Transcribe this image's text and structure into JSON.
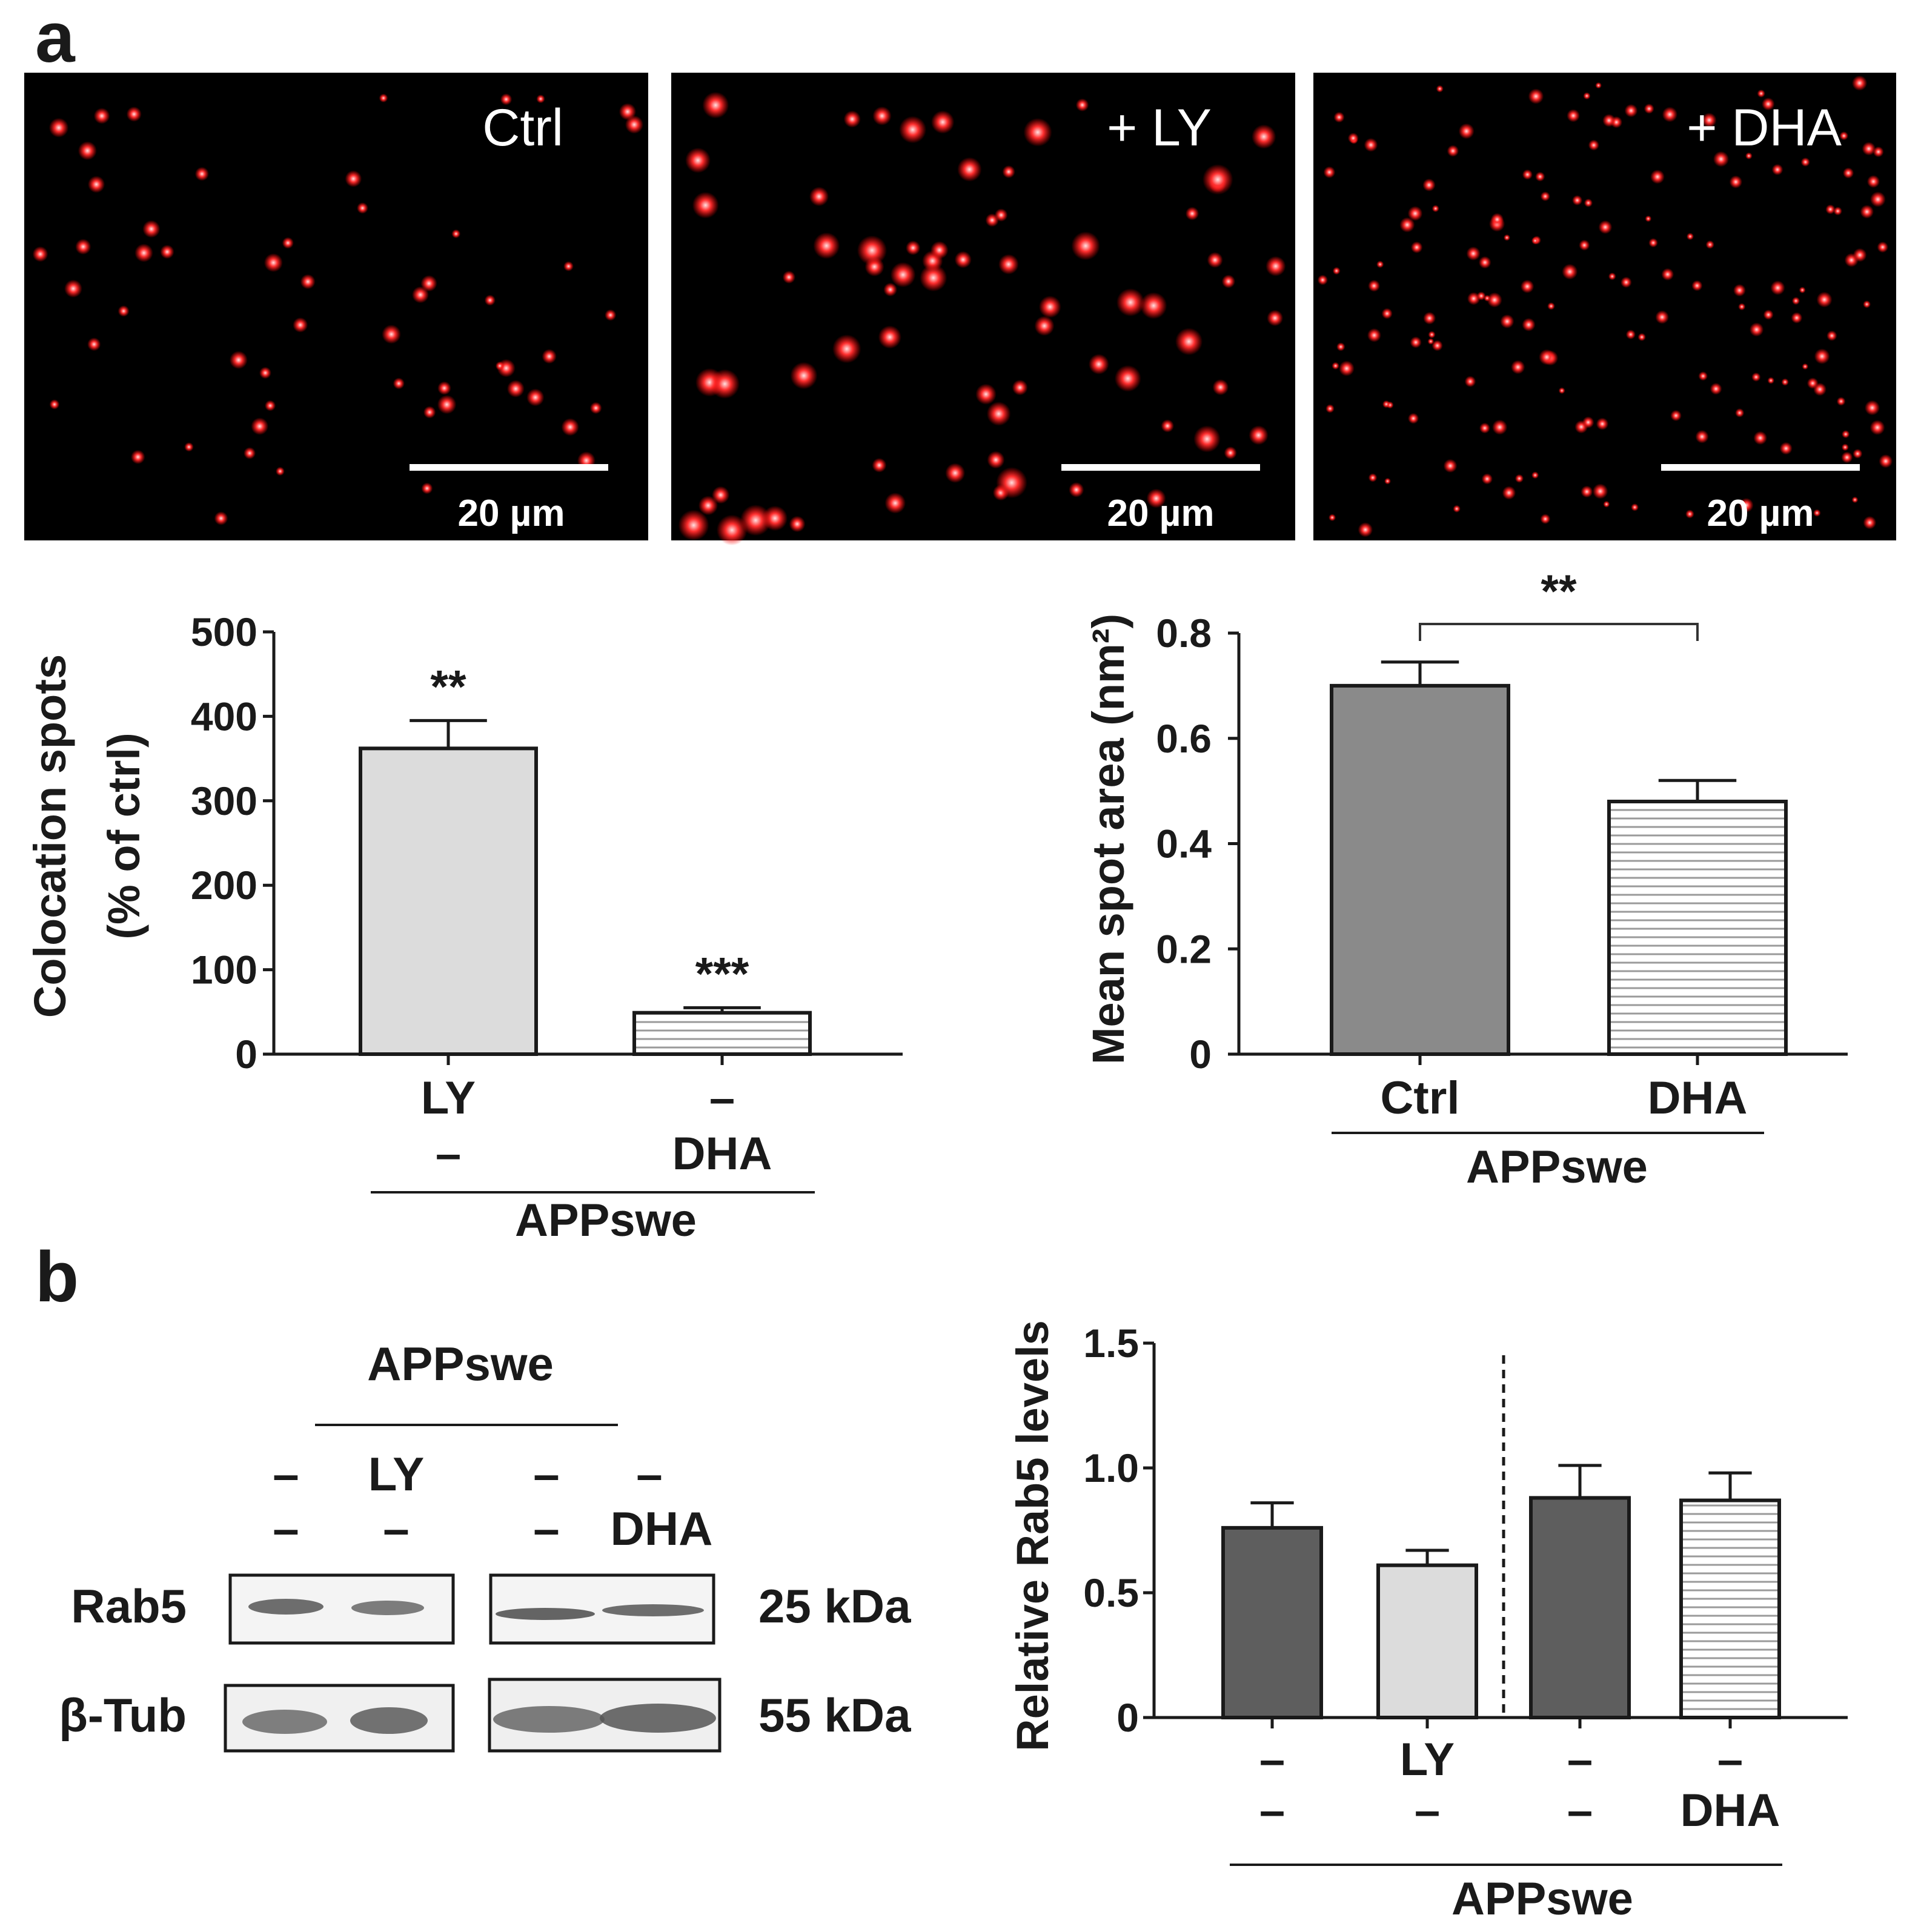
{
  "panels": {
    "a": "a",
    "b": "b"
  },
  "micrographs": [
    {
      "label": "Ctrl",
      "scale": "20 µm"
    },
    {
      "label": "+ LY",
      "scale": "20 µm"
    },
    {
      "label": "+ DHA",
      "scale": "20 µm"
    }
  ],
  "colors": {
    "background": "#000000",
    "spots": "#ff2a2a",
    "bar_light": "#dcdcdc",
    "bar_medium": "#8a8a8a",
    "bar_dark": "#5e5e5e",
    "hatch": "#9a9a9a"
  },
  "western_blot": {
    "group_label": "APPswe",
    "lane_row1": [
      "–",
      "LY",
      "–",
      "–"
    ],
    "lane_row2": [
      "–",
      "–",
      "–",
      "DHA"
    ],
    "rows": [
      {
        "protein": "Rab5",
        "size": "25 kDa"
      },
      {
        "protein": "β-Tub",
        "size": "55 kDa"
      }
    ]
  },
  "chart_data": [
    {
      "type": "bar",
      "ylabel_line1": "Colocation spots",
      "ylabel_line2": "(% of ctrl)",
      "ylim": [
        0,
        500
      ],
      "yticks": [
        "0",
        "100",
        "200",
        "300",
        "400",
        "500"
      ],
      "category_row1": [
        "LY",
        "–"
      ],
      "category_row2": [
        "–",
        "DHA"
      ],
      "group_label": "APPswe",
      "values": [
        362,
        49
      ],
      "errors": [
        33,
        6
      ],
      "significance": [
        "**",
        "***"
      ],
      "fills": [
        "light",
        "hatched"
      ]
    },
    {
      "type": "bar",
      "ylabel": "Mean spot area (nm²)",
      "ylim": [
        0,
        0.8
      ],
      "yticks": [
        "0",
        "0.2",
        "0.4",
        "0.6",
        "0.8"
      ],
      "categories": [
        "Ctrl",
        "DHA"
      ],
      "group_label": "APPswe",
      "values": [
        0.7,
        0.48
      ],
      "errors": [
        0.045,
        0.04
      ],
      "comparison": "**",
      "fills": [
        "medium",
        "hatched"
      ]
    },
    {
      "type": "bar",
      "ylabel": "Relative Rab5 levels",
      "ylim": [
        0,
        1.5
      ],
      "yticks": [
        "0",
        "0.5",
        "1.0",
        "1.5"
      ],
      "category_row1": [
        "–",
        "LY",
        "–",
        "–"
      ],
      "category_row2": [
        "–",
        "–",
        "–",
        "DHA"
      ],
      "group_label": "APPswe",
      "values": [
        0.76,
        0.61,
        0.88,
        0.87
      ],
      "errors": [
        0.1,
        0.06,
        0.13,
        0.11
      ],
      "fills": [
        "dark",
        "light",
        "dark",
        "hatched"
      ],
      "divider_after_index": 1
    }
  ]
}
